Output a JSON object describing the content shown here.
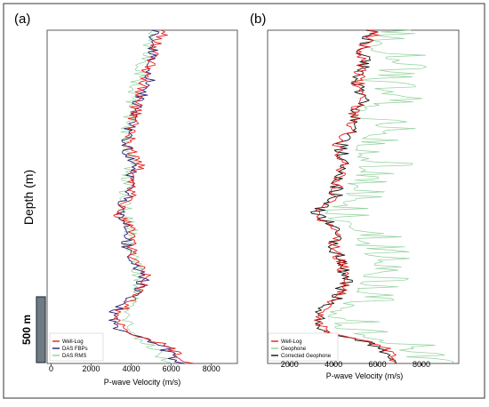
{
  "figure": {
    "shared_ylabel": "Depth (m)",
    "scale_bar_label": "500 m",
    "colors": {
      "well_log": "#e8201c",
      "das_fbp": "#2b1d70",
      "das_rms": "#8fd19a",
      "geophone": "#8fd19a",
      "corrected_geophone": "#111111",
      "scale_bar": "#6f7b82"
    }
  },
  "chart_data": [
    {
      "panel_label": "(a)",
      "type": "line",
      "orientation": "x-value / y-depth",
      "xlabel": "P-wave Velocity (m/s)",
      "ylabel": "",
      "xlim": [
        -200,
        9300
      ],
      "ylim_depth": [
        0,
        1000
      ],
      "x_ticks": [
        "0",
        "2000",
        "4000",
        "6000",
        "8000"
      ],
      "x_tick_values": [
        0,
        2000,
        4000,
        6000,
        8000
      ],
      "grid": false,
      "legend_position": "bottom-left",
      "depth": [
        0,
        50,
        100,
        150,
        200,
        250,
        300,
        350,
        400,
        450,
        500,
        550,
        600,
        650,
        700,
        750,
        800,
        850,
        900,
        950,
        1000
      ],
      "series": [
        {
          "name": "Well-Log",
          "color": "#e8201c",
          "values": [
            5700,
            5200,
            4900,
            4700,
            4400,
            4200,
            4000,
            3900,
            4400,
            4100,
            3900,
            3300,
            4100,
            3900,
            4300,
            4800,
            4300,
            3300,
            3500,
            6000,
            6800
          ]
        },
        {
          "name": "DAS FBPs",
          "color": "#2b1d70",
          "values": [
            5200,
            5100,
            5000,
            4900,
            4500,
            4200,
            3900,
            3800,
            4000,
            4000,
            3800,
            3300,
            3800,
            3800,
            4200,
            4600,
            4100,
            3100,
            3300,
            5600,
            6400
          ]
        },
        {
          "name": "DAS RMS",
          "color": "#8fd19a",
          "values": [
            5000,
            4900,
            4500,
            4300,
            4100,
            3900,
            3800,
            3900,
            4000,
            3800,
            3700,
            3700,
            4000,
            3900,
            4200,
            4400,
            4300,
            3800,
            3900,
            5000,
            5800
          ]
        }
      ]
    },
    {
      "panel_label": "(b)",
      "type": "line",
      "orientation": "x-value / y-depth",
      "xlabel": "P-wave Velocity (m/s)",
      "ylabel": "",
      "xlim": [
        1000,
        9700
      ],
      "ylim_depth": [
        0,
        1000
      ],
      "x_ticks": [
        "2000",
        "4000",
        "6000",
        "8000"
      ],
      "x_tick_values": [
        2000,
        4000,
        6000,
        8000
      ],
      "grid": false,
      "legend_position": "bottom-left",
      "depth": [
        0,
        50,
        100,
        150,
        200,
        250,
        300,
        350,
        400,
        450,
        500,
        550,
        600,
        650,
        700,
        750,
        800,
        850,
        900,
        950,
        1000
      ],
      "series": [
        {
          "name": "Well-Log",
          "color": "#e8201c",
          "values": [
            5900,
            5400,
            5200,
            5100,
            5300,
            5000,
            4800,
            4200,
            4500,
            4200,
            4000,
            3100,
            4200,
            4000,
            4300,
            4700,
            4200,
            3300,
            3600,
            6400,
            6800
          ]
        },
        {
          "name": "Geophone",
          "color": "#8fd19a",
          "values": [
            6400,
            6000,
            7200,
            5500,
            7000,
            5200,
            6500,
            4900,
            5900,
            4800,
            5000,
            3900,
            5200,
            5600,
            6200,
            5800,
            5400,
            4200,
            4700,
            7400,
            7800
          ]
        },
        {
          "name": "Corrected Geophone",
          "color": "#111111",
          "values": [
            5800,
            5300,
            5400,
            5000,
            5400,
            4900,
            4900,
            4300,
            4500,
            4200,
            4100,
            3200,
            4200,
            4000,
            4400,
            4600,
            4200,
            3300,
            3500,
            6100,
            6700
          ]
        }
      ]
    }
  ]
}
